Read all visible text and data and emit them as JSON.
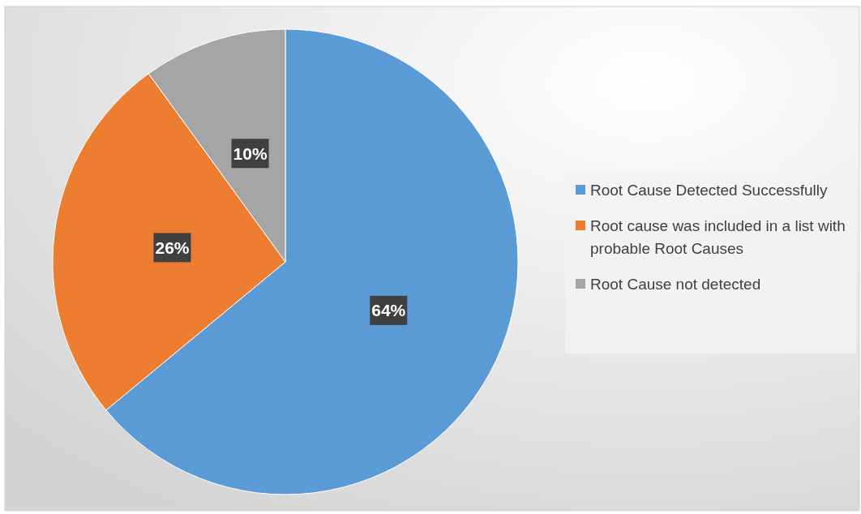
{
  "chart_data": {
    "type": "pie",
    "categories": [
      "Root Cause Detected Successfully",
      "Root cause was included in a list with probable Root Causes",
      "Root Cause not detected"
    ],
    "values": [
      64,
      26,
      10
    ],
    "colors": [
      "#5b9bd5",
      "#ed7d31",
      "#a5a5a5"
    ],
    "value_labels": [
      "64%",
      "26%",
      "10%"
    ],
    "legend": "right"
  }
}
